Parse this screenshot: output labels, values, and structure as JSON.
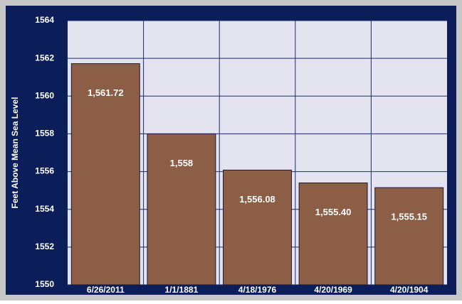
{
  "chart_data": {
    "type": "bar",
    "y_label": "Feet Above Mean Sea Level",
    "categories": [
      "6/26/2011",
      "1/1/1881",
      "4/18/1976",
      "4/20/1969",
      "4/20/1904"
    ],
    "values": [
      1561.72,
      1558,
      1556.08,
      1555.4,
      1555.15
    ],
    "value_labels": [
      "1,561.72",
      "1,558",
      "1,556.08",
      "1,555.40",
      "1,555.15"
    ],
    "color": "#8b5e45",
    "ylim": [
      1550,
      1564
    ],
    "yticks": [
      1550,
      1552,
      1554,
      1556,
      1558,
      1560,
      1562,
      1564
    ],
    "grid": true
  }
}
